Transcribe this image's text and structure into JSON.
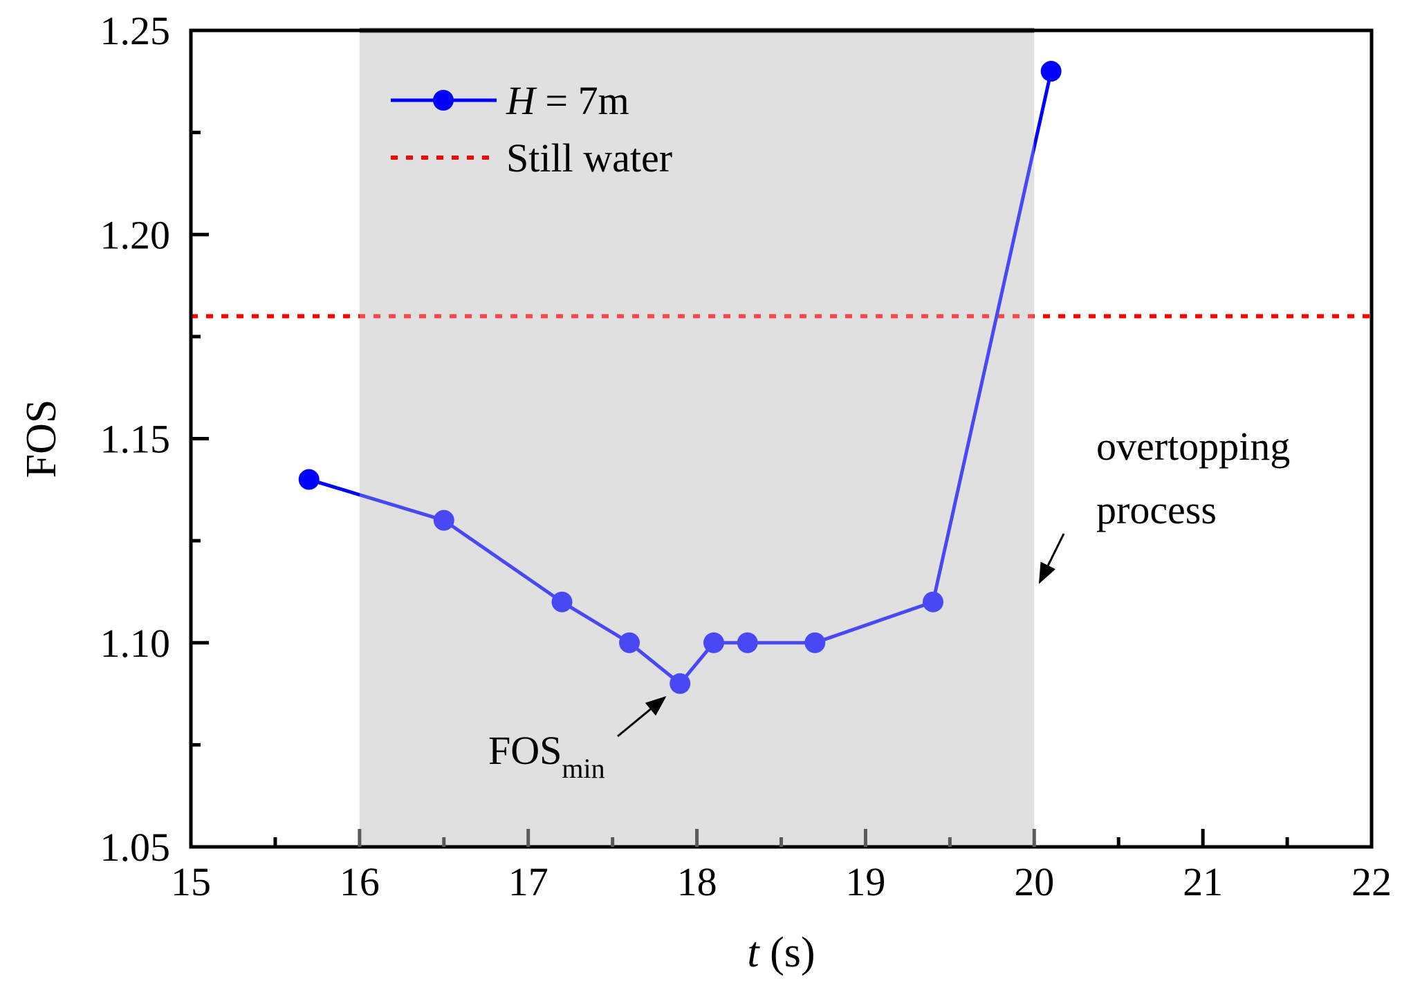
{
  "chart_data": {
    "type": "line",
    "title": "",
    "xlabel": {
      "var": "t",
      "unit": "(s)"
    },
    "ylabel": "FOS",
    "xlim": [
      15,
      22
    ],
    "ylim": [
      1.05,
      1.25
    ],
    "xticks": [
      15,
      16,
      17,
      18,
      19,
      20,
      21,
      22
    ],
    "xtick_labels": [
      "15",
      "16",
      "17",
      "18",
      "19",
      "20",
      "21",
      "22"
    ],
    "yticks": [
      1.05,
      1.1,
      1.15,
      1.2,
      1.25
    ],
    "ytick_labels": [
      "1.05",
      "1.10",
      "1.15",
      "1.20",
      "1.25"
    ],
    "grid": false,
    "shaded_region": {
      "x_start": 16,
      "x_end": 20,
      "label": [
        "overtopping",
        "process"
      ]
    },
    "series": [
      {
        "name": "H = 7m",
        "legend_var": "H",
        "legend_rest": " = 7m",
        "color": "#0000ff",
        "x": [
          15.7,
          16.5,
          17.2,
          17.6,
          17.9,
          18.1,
          18.3,
          18.7,
          19.4,
          20.1
        ],
        "y": [
          1.14,
          1.13,
          1.11,
          1.1,
          1.09,
          1.1,
          1.1,
          1.1,
          1.11,
          1.24
        ]
      }
    ],
    "reference_line": {
      "name": "Still water",
      "y": 1.18,
      "color": "#ff0000",
      "style": "dotted"
    },
    "annotations": [
      {
        "text_main": "FOS",
        "text_sub": "min",
        "target_x": 17.9,
        "target_y": 1.09
      }
    ],
    "legend_position": "top-left"
  }
}
